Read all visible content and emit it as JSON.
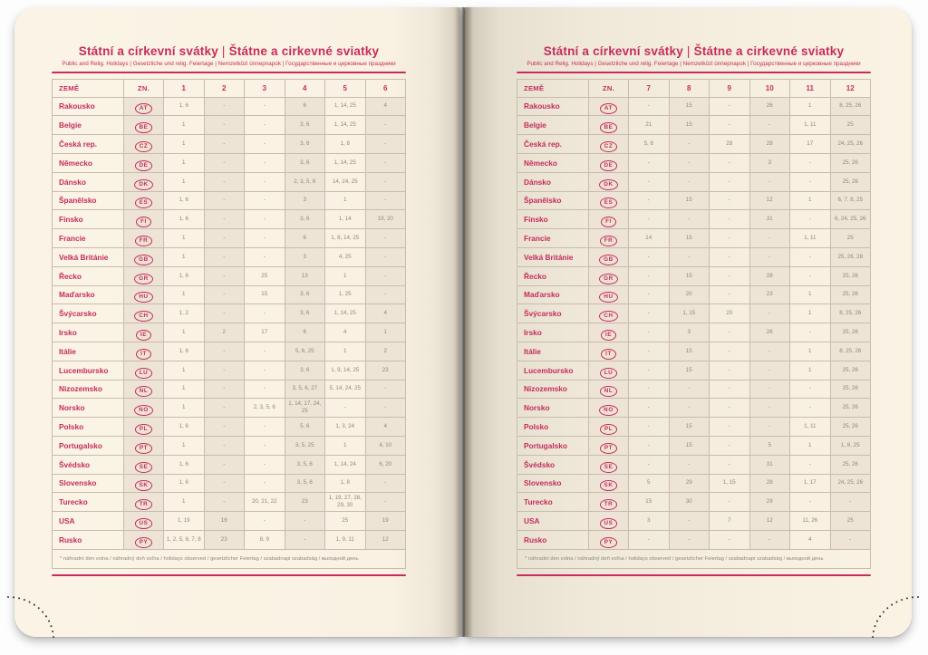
{
  "title_cs": "Státní a církevní svátky",
  "title_sep": "|",
  "title_sk": "Štátne a cirkevné sviatky",
  "subtitle": "Public and Relig. Holidays | Gesetzliche und relig. Feiertage | Nemzetközi ünnepnapok | Государственные и церковные праздники",
  "footnote": "* náhradní den volna / náhradný deň voľna / holidays observed / gesetzlicher Feiertag / szabadnapi szabadság / выходной день",
  "columns": {
    "country": "ZEMĚ",
    "code": "ZN."
  },
  "colors": {
    "accent": "#c62c5c",
    "paper": "#f9f2e3",
    "border": "#c7bcac",
    "celltext": "#8f8779",
    "dots": "#3a3a35"
  },
  "pages": [
    {
      "side": "left",
      "months": [
        "1",
        "2",
        "3",
        "4",
        "5",
        "6"
      ],
      "rows": [
        {
          "country": "Rakousko",
          "code": "AT",
          "values": [
            "1, 6",
            "-",
            "-",
            "6",
            "1, 14, 25",
            "4"
          ]
        },
        {
          "country": "Belgie",
          "code": "BE",
          "values": [
            "1",
            "-",
            "-",
            "3, 6",
            "1, 14, 25",
            "-"
          ]
        },
        {
          "country": "Česká rep.",
          "code": "CZ",
          "values": [
            "1",
            "-",
            "-",
            "3, 6",
            "1, 8",
            "-"
          ]
        },
        {
          "country": "Německo",
          "code": "DE",
          "values": [
            "1",
            "-",
            "-",
            "3, 6",
            "1, 14, 25",
            "-"
          ]
        },
        {
          "country": "Dánsko",
          "code": "DK",
          "values": [
            "1",
            "-",
            "-",
            "2, 3, 5, 6",
            "14, 24, 25",
            "-"
          ]
        },
        {
          "country": "Španělsko",
          "code": "ES",
          "values": [
            "1, 6",
            "-",
            "-",
            "3",
            "1",
            "-"
          ]
        },
        {
          "country": "Finsko",
          "code": "FI",
          "values": [
            "1, 6",
            "-",
            "-",
            "3, 6",
            "1, 14",
            "19, 20"
          ]
        },
        {
          "country": "Francie",
          "code": "FR",
          "values": [
            "1",
            "-",
            "-",
            "6",
            "1, 8, 14, 25",
            "-"
          ]
        },
        {
          "country": "Velká Británie",
          "code": "GB",
          "values": [
            "1",
            "-",
            "-",
            "3",
            "4, 25",
            "-"
          ]
        },
        {
          "country": "Řecko",
          "code": "GR",
          "values": [
            "1, 6",
            "-",
            "25",
            "13",
            "1",
            "-"
          ]
        },
        {
          "country": "Maďarsko",
          "code": "HU",
          "values": [
            "1",
            "-",
            "15",
            "3, 6",
            "1, 25",
            "-"
          ]
        },
        {
          "country": "Švýcarsko",
          "code": "CH",
          "values": [
            "1, 2",
            "-",
            "-",
            "3, 6",
            "1, 14, 25",
            "4"
          ]
        },
        {
          "country": "Irsko",
          "code": "IE",
          "values": [
            "1",
            "2",
            "17",
            "6",
            "4",
            "1"
          ]
        },
        {
          "country": "Itálie",
          "code": "IT",
          "values": [
            "1, 6",
            "-",
            "-",
            "5, 6, 25",
            "1",
            "2"
          ]
        },
        {
          "country": "Lucembursko",
          "code": "LU",
          "values": [
            "1",
            "-",
            "-",
            "3, 6",
            "1, 9, 14, 25",
            "23"
          ]
        },
        {
          "country": "Nizozemsko",
          "code": "NL",
          "values": [
            "1",
            "-",
            "-",
            "3, 5, 6, 27",
            "5, 14, 24, 25",
            "-"
          ]
        },
        {
          "country": "Norsko",
          "code": "NO",
          "values": [
            "1",
            "-",
            "2, 3, 5, 6",
            "1, 14, 17, 24, 25",
            "-",
            "-"
          ]
        },
        {
          "country": "Polsko",
          "code": "PL",
          "values": [
            "1, 6",
            "-",
            "-",
            "5, 6",
            "1, 3, 24",
            "4"
          ]
        },
        {
          "country": "Portugalsko",
          "code": "PT",
          "values": [
            "1",
            "-",
            "-",
            "3, 5, 25",
            "1",
            "4, 10"
          ]
        },
        {
          "country": "Švédsko",
          "code": "SE",
          "values": [
            "1, 6",
            "-",
            "-",
            "3, 5, 6",
            "1, 14, 24",
            "6, 20"
          ]
        },
        {
          "country": "Slovensko",
          "code": "SK",
          "values": [
            "1, 6",
            "-",
            "-",
            "3, 5, 6",
            "1, 8",
            "-"
          ]
        },
        {
          "country": "Turecko",
          "code": "TR",
          "values": [
            "1",
            "-",
            "20, 21, 22",
            "23",
            "1, 19, 27, 28, 29, 30",
            "-"
          ]
        },
        {
          "country": "USA",
          "code": "US",
          "values": [
            "1, 19",
            "16",
            "-",
            "-",
            "25",
            "19"
          ]
        },
        {
          "country": "Rusko",
          "code": "PY",
          "values": [
            "1, 2, 5, 6, 7, 8",
            "23",
            "8, 9",
            "-",
            "1, 9, 11",
            "12"
          ]
        }
      ]
    },
    {
      "side": "right",
      "months": [
        "7",
        "8",
        "9",
        "10",
        "11",
        "12"
      ],
      "rows": [
        {
          "country": "Rakousko",
          "code": "AT",
          "values": [
            "-",
            "15",
            "-",
            "26",
            "1",
            "8, 25, 26"
          ]
        },
        {
          "country": "Belgie",
          "code": "BE",
          "values": [
            "21",
            "15",
            "-",
            "-",
            "1, 11",
            "25"
          ]
        },
        {
          "country": "Česká rep.",
          "code": "CZ",
          "values": [
            "5, 6",
            "-",
            "28",
            "28",
            "17",
            "24, 25, 26"
          ]
        },
        {
          "country": "Německo",
          "code": "DE",
          "values": [
            "-",
            "-",
            "-",
            "3",
            "-",
            "25, 26"
          ]
        },
        {
          "country": "Dánsko",
          "code": "DK",
          "values": [
            "-",
            "-",
            "-",
            "-",
            "-",
            "25, 26"
          ]
        },
        {
          "country": "Španělsko",
          "code": "ES",
          "values": [
            "-",
            "15",
            "-",
            "12",
            "1",
            "6, 7, 8, 25"
          ]
        },
        {
          "country": "Finsko",
          "code": "FI",
          "values": [
            "-",
            "-",
            "-",
            "31",
            "-",
            "6, 24, 25, 26"
          ]
        },
        {
          "country": "Francie",
          "code": "FR",
          "values": [
            "14",
            "15",
            "-",
            "-",
            "1, 11",
            "25"
          ]
        },
        {
          "country": "Velká Británie",
          "code": "GB",
          "values": [
            "-",
            "-",
            "-",
            "-",
            "-",
            "25, 26, 28"
          ]
        },
        {
          "country": "Řecko",
          "code": "GR",
          "values": [
            "-",
            "15",
            "-",
            "28",
            "-",
            "25, 26"
          ]
        },
        {
          "country": "Maďarsko",
          "code": "HU",
          "values": [
            "-",
            "20",
            "-",
            "23",
            "1",
            "25, 26"
          ]
        },
        {
          "country": "Švýcarsko",
          "code": "CH",
          "values": [
            "-",
            "1, 15",
            "20",
            "-",
            "1",
            "8, 25, 26"
          ]
        },
        {
          "country": "Irsko",
          "code": "IE",
          "values": [
            "-",
            "3",
            "-",
            "26",
            "-",
            "25, 26"
          ]
        },
        {
          "country": "Itálie",
          "code": "IT",
          "values": [
            "-",
            "15",
            "-",
            "-",
            "1",
            "8, 25, 26"
          ]
        },
        {
          "country": "Lucembursko",
          "code": "LU",
          "values": [
            "-",
            "15",
            "-",
            "-",
            "1",
            "25, 26"
          ]
        },
        {
          "country": "Nizozemsko",
          "code": "NL",
          "values": [
            "-",
            "-",
            "-",
            "-",
            "-",
            "25, 26"
          ]
        },
        {
          "country": "Norsko",
          "code": "NO",
          "values": [
            "-",
            "-",
            "-",
            "-",
            "-",
            "25, 26"
          ]
        },
        {
          "country": "Polsko",
          "code": "PL",
          "values": [
            "-",
            "15",
            "-",
            "-",
            "1, 11",
            "25, 26"
          ]
        },
        {
          "country": "Portugalsko",
          "code": "PT",
          "values": [
            "-",
            "15",
            "-",
            "5",
            "1",
            "1, 8, 25"
          ]
        },
        {
          "country": "Švédsko",
          "code": "SE",
          "values": [
            "-",
            "-",
            "-",
            "31",
            "-",
            "25, 26"
          ]
        },
        {
          "country": "Slovensko",
          "code": "SK",
          "values": [
            "5",
            "29",
            "1, 15",
            "28",
            "1, 17",
            "24, 25, 26"
          ]
        },
        {
          "country": "Turecko",
          "code": "TR",
          "values": [
            "15",
            "30",
            "-",
            "29",
            "-",
            "-"
          ]
        },
        {
          "country": "USA",
          "code": "US",
          "values": [
            "3",
            "-",
            "7",
            "12",
            "11, 26",
            "25"
          ]
        },
        {
          "country": "Rusko",
          "code": "PY",
          "values": [
            "-",
            "-",
            "-",
            "-",
            "4",
            "-"
          ]
        }
      ]
    }
  ]
}
